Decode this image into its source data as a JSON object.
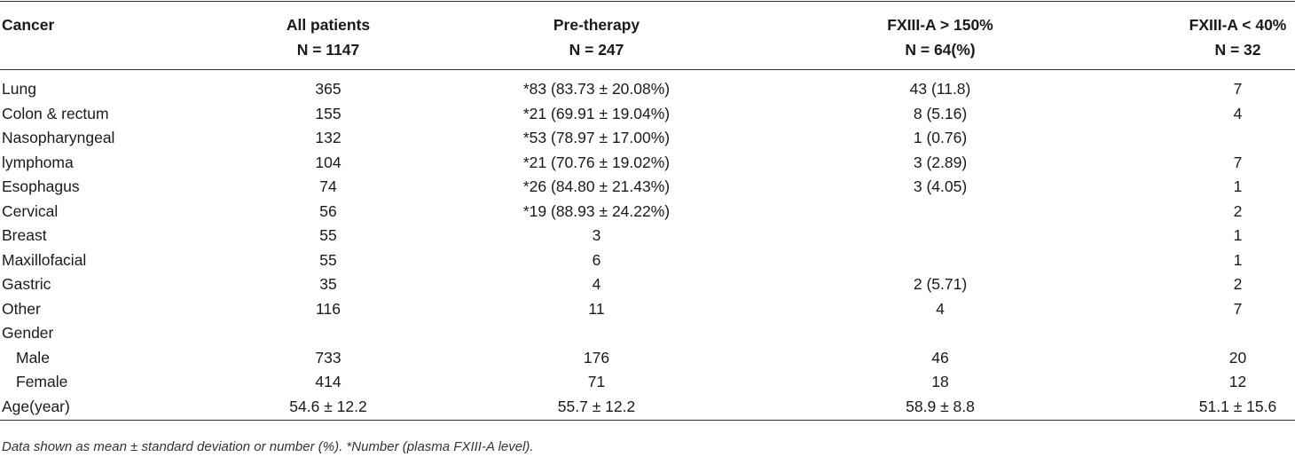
{
  "header": [
    {
      "line1": "Cancer",
      "line2": null
    },
    {
      "line1": "All patients",
      "line2": "N = 1147"
    },
    {
      "line1": "Pre-therapy",
      "line2": "N = 247"
    },
    {
      "line1": "FXIII-A > 150%",
      "line2": "N = 64(%)"
    },
    {
      "line1": "FXIII-A < 40%",
      "line2": "N = 32"
    }
  ],
  "rows": [
    [
      "Lung",
      "365",
      "*83 (83.73 ± 20.08%)",
      "43 (11.8)",
      "7"
    ],
    [
      "Colon & rectum",
      "155",
      "*21 (69.91 ± 19.04%)",
      "8 (5.16)",
      "4"
    ],
    [
      "Nasopharyngeal",
      "132",
      "*53 (78.97 ± 17.00%)",
      "1 (0.76)",
      null
    ],
    [
      "lymphoma",
      "104",
      "*21 (70.76 ± 19.02%)",
      "3 (2.89)",
      "7"
    ],
    [
      "Esophagus",
      "74",
      "*26 (84.80 ± 21.43%)",
      "3 (4.05)",
      "1"
    ],
    [
      "Cervical",
      "56",
      "*19 (88.93 ± 24.22%)",
      null,
      "2"
    ],
    [
      "Breast",
      "55",
      "3",
      null,
      "1"
    ],
    [
      "Maxillofacial",
      "55",
      "6",
      null,
      "1"
    ],
    [
      "Gastric",
      "35",
      "4",
      "2 (5.71)",
      "2"
    ],
    [
      "Other",
      "116",
      "11",
      "4",
      "7"
    ],
    [
      "Gender",
      null,
      null,
      null,
      null
    ],
    [
      "Male",
      "733",
      "176",
      "46",
      "20"
    ],
    [
      "Female",
      "414",
      "71",
      "18",
      "12"
    ],
    [
      "Age(year)",
      "54.6 ± 12.2",
      "55.7 ± 12.2",
      "58.9 ± 8.8",
      "51.1 ± 15.6"
    ]
  ],
  "footnote": "Data shown as mean ± standard deviation or number (%). *Number (plasma FXIII-A level)."
}
